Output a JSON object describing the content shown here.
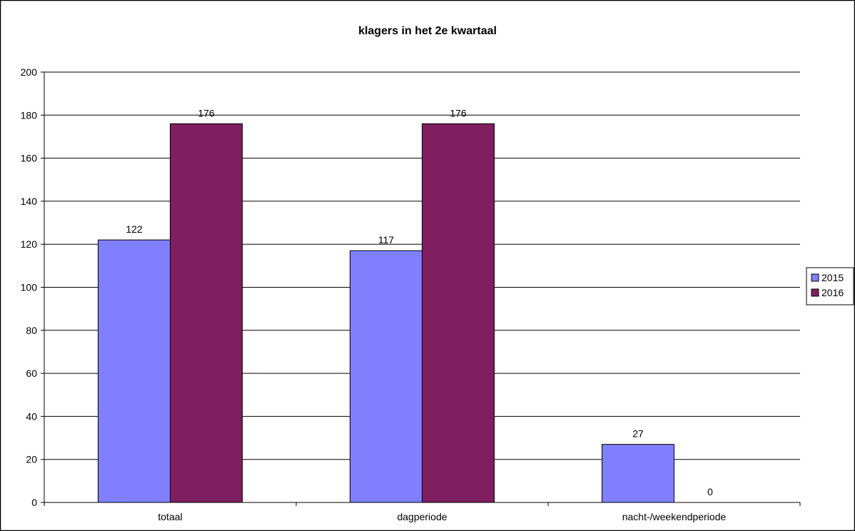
{
  "chart_data": {
    "type": "bar",
    "title": "klagers in het 2e kwartaal",
    "categories": [
      "totaal",
      "dagperiode",
      "nacht-/weekendperiode"
    ],
    "series": [
      {
        "name": "2015",
        "values": [
          122,
          117,
          27
        ],
        "color": "#8080ff"
      },
      {
        "name": "2016",
        "values": [
          176,
          176,
          0
        ],
        "color": "#7f1f5f"
      }
    ],
    "ylim": [
      0,
      200
    ],
    "yticks": [
      0,
      20,
      40,
      60,
      80,
      100,
      120,
      140,
      160,
      180,
      200
    ],
    "grid": true,
    "legend": "right",
    "data_labels": true
  }
}
